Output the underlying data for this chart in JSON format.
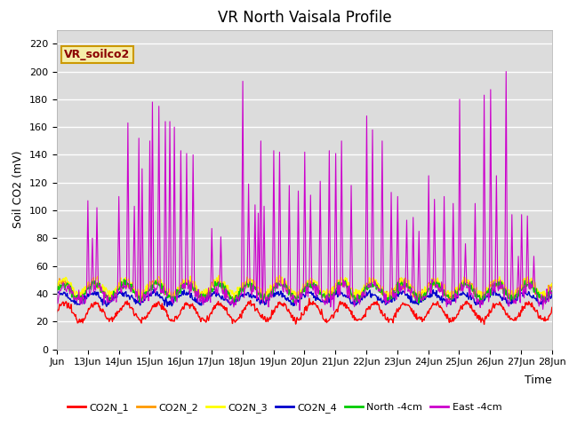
{
  "title": "VR North Vaisala Profile",
  "ylabel": "Soil CO2 (mV)",
  "xlabel": "Time",
  "legend_label": "VR_soilco2",
  "series_names": [
    "CO2N_1",
    "CO2N_2",
    "CO2N_3",
    "CO2N_4",
    "North -4cm",
    "East -4cm"
  ],
  "series_colors": [
    "#ff0000",
    "#ff9900",
    "#ffff00",
    "#0000cc",
    "#00cc00",
    "#cc00cc"
  ],
  "ylim": [
    0,
    230
  ],
  "yticks": [
    0,
    20,
    40,
    60,
    80,
    100,
    120,
    140,
    160,
    180,
    200,
    220
  ],
  "background_color": "#dcdcdc",
  "fig_bg_color": "#ffffff",
  "title_fontsize": 12,
  "label_fontsize": 9,
  "tick_fontsize": 8,
  "linewidth_thin": 1.0,
  "linewidth_east": 0.8,
  "n_days": 16,
  "n_pts_per_day": 48
}
